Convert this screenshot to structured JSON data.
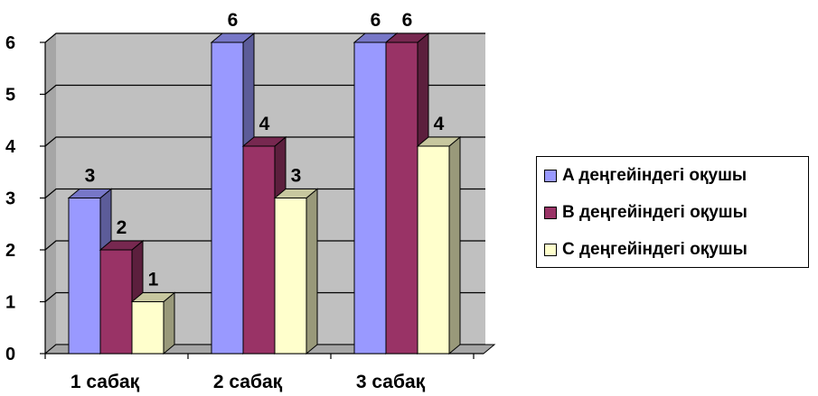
{
  "chart_data": {
    "type": "bar",
    "title": "",
    "xlabel": "",
    "ylabel": "",
    "categories": [
      "1 сабақ",
      "2 сабақ",
      "3 сабақ"
    ],
    "ylim": [
      0,
      6
    ],
    "yticks": [
      "0",
      "1",
      "2",
      "3",
      "4",
      "5",
      "6"
    ],
    "series": [
      {
        "name": "A деңгейіндегі оқушы",
        "values": [
          3,
          6,
          6
        ],
        "color": "#9999ff"
      },
      {
        "name": "B деңгейіндегі оқушы",
        "values": [
          2,
          4,
          6
        ],
        "color": "#993366"
      },
      {
        "name": "C деңгейіндегі оқушы",
        "values": [
          1,
          3,
          4
        ],
        "color": "#ffffcc"
      }
    ],
    "data_labels": true,
    "grid": true,
    "three_d": true,
    "legend_position": "right"
  }
}
